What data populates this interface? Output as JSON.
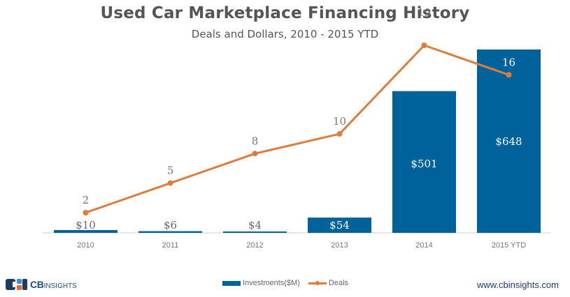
{
  "chart_data": {
    "type": "bar",
    "title": "Used Car Marketplace Financing History",
    "subtitle": "Deals and Dollars, 2010 - 2015 YTD",
    "categories": [
      "2010",
      "2011",
      "2012",
      "2013",
      "2014",
      "2015 YTD"
    ],
    "series": [
      {
        "name": "Investments($M)",
        "type": "bar",
        "color": "#00629b",
        "values": [
          10,
          6,
          4,
          54,
          501,
          648
        ],
        "labels": [
          "$10",
          "$6",
          "$4",
          "$54",
          "$501",
          "$648"
        ]
      },
      {
        "name": "Deals",
        "type": "line",
        "color": "#dd7d3d",
        "values": [
          2,
          5,
          8,
          10,
          19,
          16
        ],
        "labels": [
          "2",
          "5",
          "8",
          "10",
          "19",
          "16"
        ]
      }
    ],
    "xlabel": "",
    "ylabel": "",
    "bar_ylim": [
      0,
      700
    ],
    "line_ylim": [
      0,
      23
    ],
    "grid": false,
    "legend_position": "bottom"
  },
  "footer": {
    "logo_primary": "CB",
    "logo_secondary": "INSIGHTS",
    "url": "www.cbinsights.com"
  },
  "colors": {
    "bar": "#00629b",
    "line": "#dd7d3d",
    "text": "#555558",
    "axis": "#dddddd"
  }
}
